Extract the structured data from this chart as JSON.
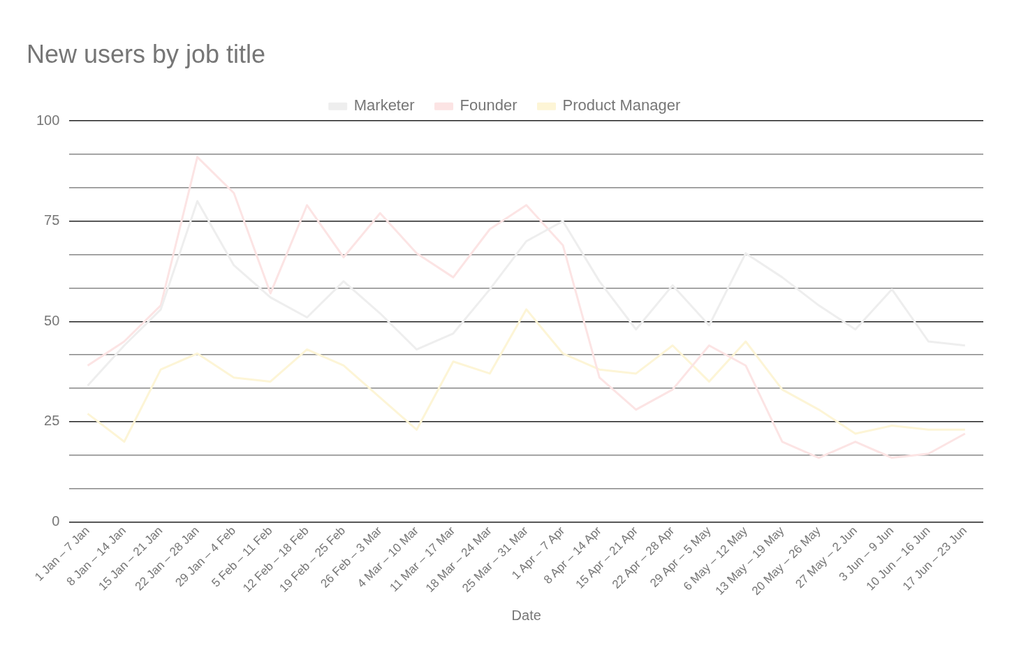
{
  "chart_data": {
    "type": "line",
    "title": "New users by job title",
    "xlabel": "Date",
    "categories": [
      "1 Jan – 7 Jan",
      "8 Jan – 14 Jan",
      "15 Jan – 21 Jan",
      "22 Jan – 28 Jan",
      "29 Jan – 4 Feb",
      "5 Feb – 11 Feb",
      "12 Feb – 18 Feb",
      "19 Feb – 25 Feb",
      "26 Feb – 3 Mar",
      "4 Mar – 10 Mar",
      "11 Mar – 17 Mar",
      "18 Mar – 24 Mar",
      "25 Mar – 31 Mar",
      "1 Apr – 7 Apr",
      "8 Apr – 14 Apr",
      "15 Apr – 21 Apr",
      "22 Apr – 28 Apr",
      "29 Apr – 5 May",
      "6 May – 12 May",
      "13 May – 19 May",
      "20 May – 26 May",
      "27 May – 2 Jun",
      "3 Jun – 9 Jun",
      "10 Jun – 16 Jun",
      "17 Jun – 23 Jun"
    ],
    "series": [
      {
        "name": "Marketer",
        "color": "#eeeeee",
        "values": [
          34,
          44,
          53,
          80,
          64,
          56,
          51,
          60,
          52,
          43,
          47,
          58,
          70,
          75,
          60,
          48,
          59,
          49,
          67,
          61,
          54,
          48,
          58,
          45,
          44
        ]
      },
      {
        "name": "Founder",
        "color": "#fce4e4",
        "values": [
          39,
          45,
          54,
          91,
          82,
          57,
          79,
          66,
          77,
          67,
          61,
          73,
          79,
          69,
          36,
          28,
          33,
          44,
          39,
          20,
          16,
          20,
          16,
          17,
          22
        ]
      },
      {
        "name": "Product Manager",
        "color": "#fdf5d6",
        "values": [
          27,
          20,
          38,
          42,
          36,
          35,
          43,
          39,
          31,
          23,
          40,
          37,
          53,
          42,
          38,
          37,
          44,
          35,
          45,
          33,
          28,
          22,
          24,
          23,
          23
        ]
      }
    ],
    "ylim": [
      0,
      100
    ],
    "yticks": [
      0,
      {
        "value": 8.33,
        "label": null
      },
      {
        "value": 16.67,
        "label": null
      },
      25,
      {
        "value": 33.33,
        "label": null
      },
      {
        "value": 41.67,
        "label": null
      },
      50,
      {
        "value": 58.33,
        "label": null
      },
      {
        "value": 66.67,
        "label": null
      },
      75,
      {
        "value": 83.33,
        "label": null
      },
      {
        "value": 91.67,
        "label": null
      },
      100
    ],
    "grid": "y",
    "legend": "top",
    "marker": "none",
    "line_style": "solid"
  }
}
